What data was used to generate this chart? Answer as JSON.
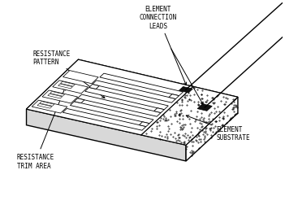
{
  "background_color": "#ffffff",
  "text_color": "#000000",
  "labels": {
    "element_connection_leads": "ELEMENT\nCONNECTION\nLEADS",
    "resistance_pattern": "RESISTANCE\nPATTERN",
    "element_substrate": "ELEMENT\nSUBSTRATE",
    "resistance_trim_area": "RESISTANCE\nTRIM AREA"
  },
  "fontsize": 5.5
}
